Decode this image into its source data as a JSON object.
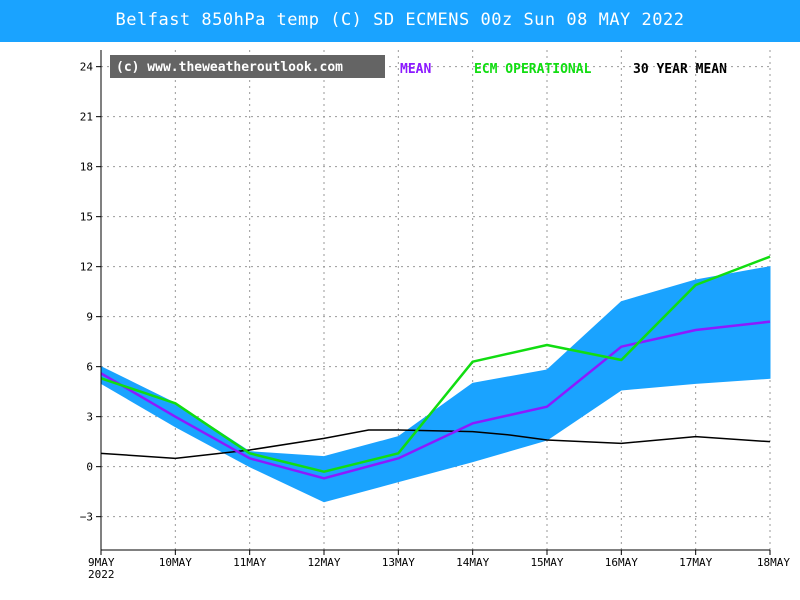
{
  "header": {
    "title": "Belfast 850hPa temp (C) SD ECMENS 00z Sun 08 MAY 2022"
  },
  "copyright": "(c) www.theweatheroutlook.com",
  "colors": {
    "band": "#1aa3ff",
    "mean": "#8c1aff",
    "operational": "#11dd11",
    "climate": "#000000",
    "title_bg": "#1aa3ff",
    "copyright_bg": "#646464"
  },
  "chart_data": {
    "type": "line",
    "title": "Belfast 850hPa temp (C) SD ECMENS 00z Sun 08 MAY 2022",
    "xlabel": "",
    "ylabel": "",
    "x_ticks": [
      "9MAY",
      "10MAY",
      "11MAY",
      "12MAY",
      "13MAY",
      "14MAY",
      "15MAY",
      "16MAY",
      "17MAY",
      "18MAY"
    ],
    "x_year_label": "2022",
    "ylim": [
      -5,
      25
    ],
    "y_ticks": [
      -3,
      0,
      3,
      6,
      9,
      12,
      15,
      18,
      21,
      24
    ],
    "grid": true,
    "legend_position": "top-right",
    "band": {
      "upper": [
        6.0,
        3.8,
        0.9,
        0.6,
        1.8,
        5.0,
        5.8,
        9.9,
        11.2,
        12.0
      ],
      "lower": [
        5.0,
        2.4,
        0.0,
        -2.1,
        -0.9,
        0.3,
        1.6,
        4.6,
        5.0,
        5.3
      ]
    },
    "series": [
      {
        "name": "MEAN",
        "values": [
          5.6,
          3.0,
          0.5,
          -0.7,
          0.5,
          2.6,
          3.6,
          7.2,
          8.2,
          8.7
        ]
      },
      {
        "name": "ECM OPERATIONAL",
        "values": [
          5.3,
          3.8,
          0.8,
          -0.3,
          0.8,
          6.3,
          7.3,
          6.4,
          10.9,
          12.6
        ]
      },
      {
        "name": "30 YEAR MEAN",
        "x": [
          0,
          1,
          2,
          3,
          3.6,
          4,
          5,
          5.5,
          6,
          7,
          8,
          9
        ],
        "values": [
          0.8,
          0.5,
          1.0,
          1.7,
          2.2,
          2.2,
          2.1,
          1.9,
          1.6,
          1.4,
          1.8,
          1.5
        ]
      }
    ]
  }
}
